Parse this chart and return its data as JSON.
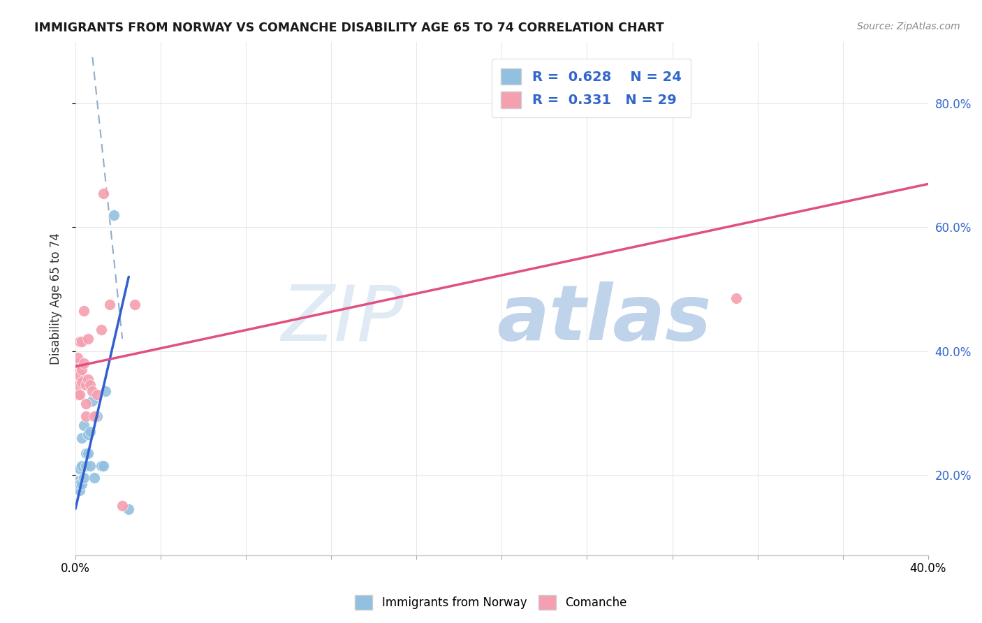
{
  "title": "IMMIGRANTS FROM NORWAY VS COMANCHE DISABILITY AGE 65 TO 74 CORRELATION CHART",
  "source": "Source: ZipAtlas.com",
  "ylabel": "Disability Age 65 to 74",
  "legend_norway_R": "0.628",
  "legend_norway_N": "24",
  "legend_comanche_R": "0.331",
  "legend_comanche_N": "29",
  "legend_label_norway": "Immigrants from Norway",
  "legend_label_comanche": "Comanche",
  "norway_color": "#92c0e0",
  "comanche_color": "#f4a0b0",
  "norway_line_color": "#3060d0",
  "comanche_line_color": "#e05080",
  "dashed_line_color": "#90aec8",
  "norway_x": [
    0.001,
    0.001,
    0.002,
    0.002,
    0.002,
    0.003,
    0.003,
    0.003,
    0.004,
    0.004,
    0.005,
    0.005,
    0.006,
    0.006,
    0.007,
    0.007,
    0.008,
    0.009,
    0.01,
    0.012,
    0.013,
    0.014,
    0.018,
    0.025
  ],
  "norway_y": [
    0.185,
    0.19,
    0.175,
    0.185,
    0.21,
    0.185,
    0.215,
    0.26,
    0.195,
    0.28,
    0.215,
    0.235,
    0.235,
    0.265,
    0.215,
    0.27,
    0.32,
    0.195,
    0.295,
    0.215,
    0.215,
    0.335,
    0.62,
    0.145
  ],
  "comanche_x": [
    0.0,
    0.001,
    0.001,
    0.001,
    0.001,
    0.001,
    0.002,
    0.002,
    0.002,
    0.003,
    0.003,
    0.003,
    0.004,
    0.004,
    0.005,
    0.005,
    0.005,
    0.006,
    0.006,
    0.007,
    0.008,
    0.009,
    0.01,
    0.012,
    0.013,
    0.016,
    0.022,
    0.028,
    0.31
  ],
  "comanche_y": [
    0.375,
    0.33,
    0.345,
    0.37,
    0.38,
    0.39,
    0.33,
    0.36,
    0.415,
    0.35,
    0.37,
    0.415,
    0.38,
    0.465,
    0.295,
    0.315,
    0.345,
    0.355,
    0.42,
    0.345,
    0.335,
    0.295,
    0.33,
    0.435,
    0.655,
    0.475,
    0.15,
    0.475,
    0.485
  ],
  "norway_trendline_x": [
    0.0,
    0.025
  ],
  "norway_trendline_y": [
    0.145,
    0.52
  ],
  "comanche_trendline_x": [
    0.0,
    0.4
  ],
  "comanche_trendline_y": [
    0.375,
    0.67
  ],
  "dashed_line_x": [
    0.008,
    0.022
  ],
  "dashed_line_y": [
    0.875,
    0.42
  ],
  "xlim": [
    0.0,
    0.4
  ],
  "ylim": [
    0.07,
    0.9
  ],
  "ytick_positions": [
    0.2,
    0.4,
    0.6,
    0.8
  ],
  "xtick_positions": [
    0.0,
    0.04,
    0.08,
    0.12,
    0.16,
    0.2,
    0.24,
    0.28,
    0.32,
    0.36,
    0.4
  ],
  "background_color": "#ffffff",
  "grid_color": "#e8e8e8"
}
